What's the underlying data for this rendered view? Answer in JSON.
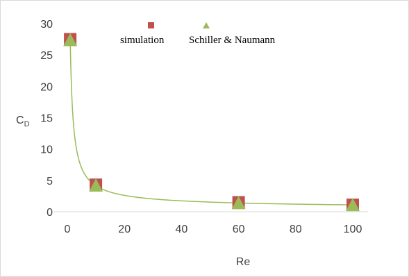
{
  "chart_data": {
    "type": "scatter",
    "xlabel": "Re",
    "ylabel": {
      "main": "C",
      "sub": "D"
    },
    "xlim": [
      0,
      100
    ],
    "ylim": [
      0,
      30
    ],
    "x_ticks": [
      0,
      20,
      40,
      60,
      80,
      100
    ],
    "y_ticks": [
      0,
      5,
      10,
      15,
      20,
      25,
      30
    ],
    "legend_position": "top",
    "series": [
      {
        "name": "simulation",
        "marker": "square",
        "color": "#c0504d",
        "points": [
          [
            1,
            27.5
          ],
          [
            10,
            4.3
          ],
          [
            60,
            1.5
          ],
          [
            100,
            1.1
          ]
        ]
      },
      {
        "name": "Schiller & Naumann",
        "marker": "triangle",
        "color": "#9bbb59",
        "points": [
          [
            1,
            27.4
          ],
          [
            10,
            4.2
          ],
          [
            60,
            1.4
          ],
          [
            100,
            1.1
          ]
        ]
      }
    ],
    "fit_curve": {
      "color": "#9bbb59",
      "formula": "24/Re*(1+0.15*Re^0.687)",
      "x_range": [
        1,
        100
      ]
    }
  }
}
